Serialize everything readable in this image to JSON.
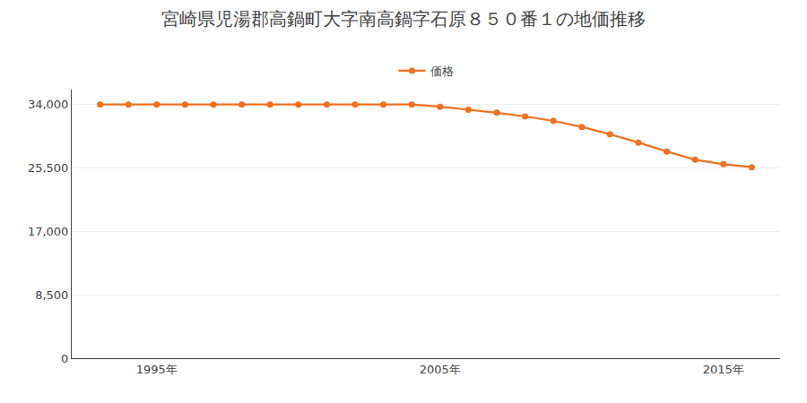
{
  "chart_data": {
    "type": "line",
    "title": "宮崎県児湯郡高鍋町大字南高鍋字石原８５０番１の地価推移",
    "x": [
      1993,
      1994,
      1995,
      1996,
      1997,
      1998,
      1999,
      2000,
      2001,
      2002,
      2003,
      2004,
      2005,
      2006,
      2007,
      2008,
      2009,
      2010,
      2011,
      2012,
      2013,
      2014,
      2015,
      2016
    ],
    "series": [
      {
        "name": "価格",
        "color": "#f07020",
        "marker": "circle",
        "line_style": "solid",
        "values": [
          34000,
          34000,
          34000,
          34000,
          34000,
          34000,
          34000,
          34000,
          34000,
          34000,
          34000,
          34000,
          33700,
          33300,
          32900,
          32400,
          31800,
          31000,
          30000,
          28900,
          27700,
          26600,
          26000,
          25600
        ]
      }
    ],
    "xlim": [
      1992,
      2017
    ],
    "xticks": [
      {
        "value": 1995,
        "label": "1995年"
      },
      {
        "value": 2005,
        "label": "2005年"
      },
      {
        "value": 2015,
        "label": "2015年"
      }
    ],
    "ylim": [
      0,
      36000
    ],
    "yticks": [
      0,
      {
        "value": 8500,
        "label": "8,500"
      },
      {
        "value": 17000,
        "label": "17,000"
      },
      {
        "value": 25500,
        "label": "25,500"
      },
      {
        "value": 34000,
        "label": "34,000"
      }
    ],
    "grid": "y",
    "legend": "top"
  }
}
